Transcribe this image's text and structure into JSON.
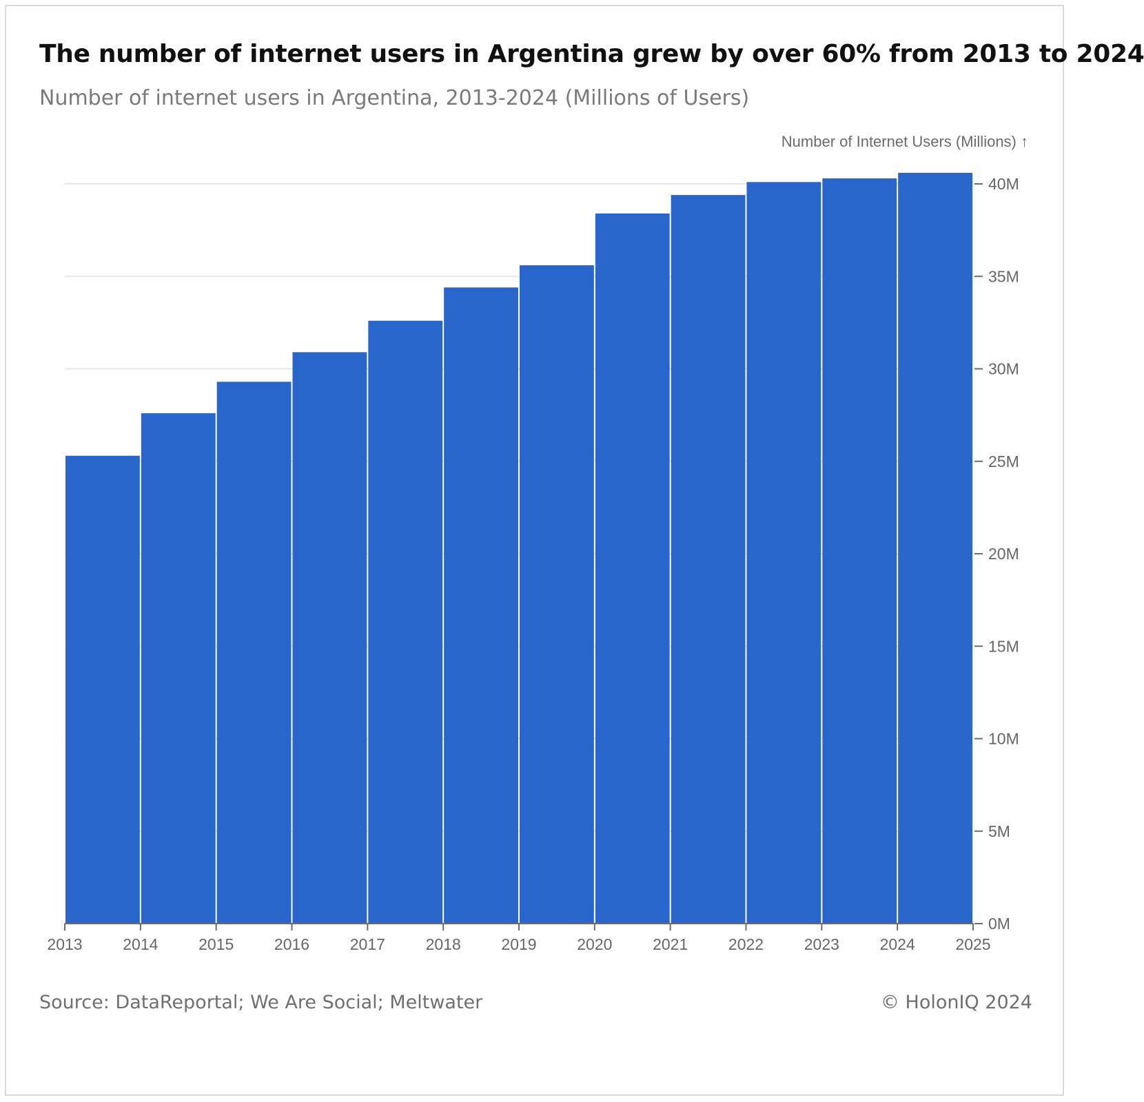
{
  "header": {
    "title": "The number of internet users in Argentina grew by over 60% from 2013 to 2024",
    "subtitle": "Number of internet users in Argentina, 2013-2024 (Millions of Users)"
  },
  "footer": {
    "source": "Source: DataReportal; We Are Social; Meltwater",
    "copyright": "© HolonIQ 2024"
  },
  "colors": {
    "bar": "#2966cc",
    "grid": "#e6e6e6",
    "axis": "#6b6b6b",
    "tick_text": "#666666"
  },
  "chart_data": {
    "type": "bar",
    "title": "The number of internet users in Argentina grew by over 60% from 2013 to 2024",
    "subtitle": "Number of internet users in Argentina, 2013-2024 (Millions of Users)",
    "ylabel": "Number of Internet Users (Millions) ↑",
    "xlabel": "",
    "categories": [
      "2013",
      "2014",
      "2015",
      "2016",
      "2017",
      "2018",
      "2019",
      "2020",
      "2021",
      "2022",
      "2023",
      "2024"
    ],
    "values": [
      25.3,
      27.6,
      29.3,
      30.9,
      32.6,
      34.4,
      35.6,
      38.4,
      39.4,
      40.1,
      40.3,
      40.6
    ],
    "x_ticks": [
      "2013",
      "2014",
      "2015",
      "2016",
      "2017",
      "2018",
      "2019",
      "2020",
      "2021",
      "2022",
      "2023",
      "2024",
      "2025"
    ],
    "y_ticks": [
      {
        "value": 0,
        "label": "0M"
      },
      {
        "value": 5,
        "label": "5M"
      },
      {
        "value": 10,
        "label": "10M"
      },
      {
        "value": 15,
        "label": "15M"
      },
      {
        "value": 20,
        "label": "20M"
      },
      {
        "value": 25,
        "label": "25M"
      },
      {
        "value": 30,
        "label": "30M"
      },
      {
        "value": 35,
        "label": "35M"
      },
      {
        "value": 40,
        "label": "40M"
      }
    ],
    "ylim": [
      0,
      40
    ],
    "y_axis_side": "right",
    "grid": true
  }
}
